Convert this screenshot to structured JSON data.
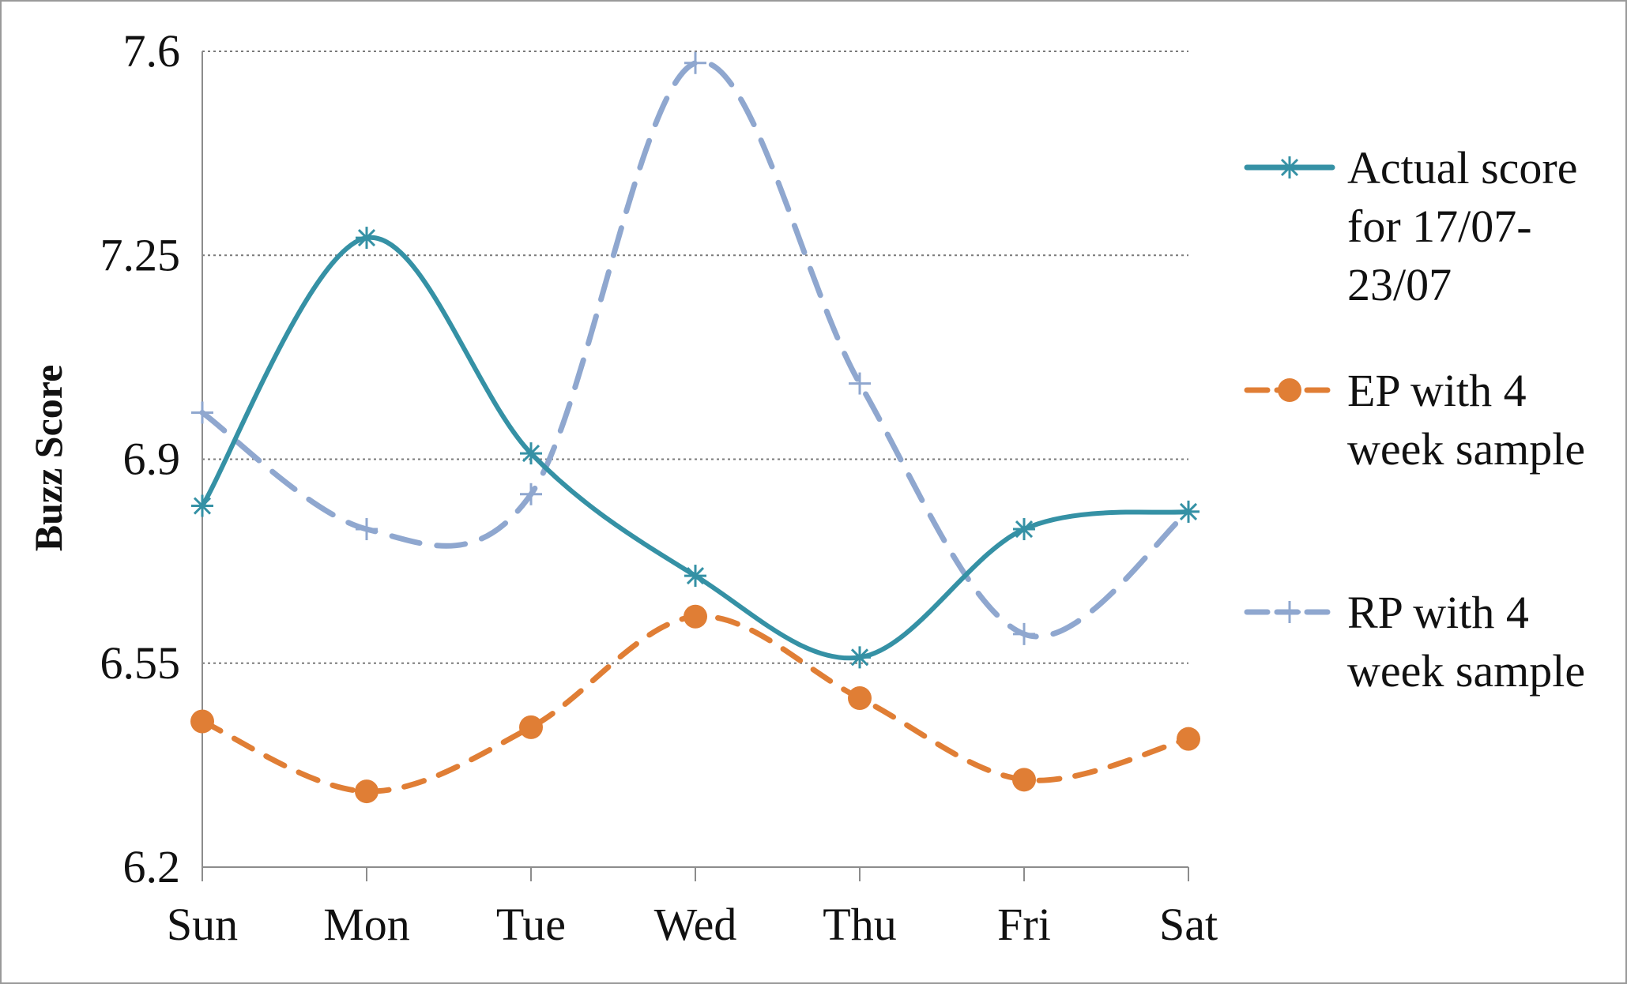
{
  "chart_data": {
    "type": "line",
    "title": "",
    "xlabel": "",
    "ylabel": "Buzz Score",
    "categories": [
      "Sun",
      "Mon",
      "Tue",
      "Wed",
      "Thu",
      "Fri",
      "Sat"
    ],
    "ylim": [
      6.2,
      7.6
    ],
    "yticks": [
      "6.2",
      "6.55",
      "6.9",
      "7.25",
      "7.6"
    ],
    "grid": "horizontal-dotted",
    "legend_position": "right",
    "series": [
      {
        "name": "Actual score for 17/07-23/07",
        "legend_lines": [
          "Actual score",
          "for 17/07-",
          "23/07"
        ],
        "values": [
          6.82,
          7.28,
          6.91,
          6.7,
          6.56,
          6.78,
          6.81
        ],
        "color": "#3591a5",
        "style": "solid",
        "marker": "asterisk"
      },
      {
        "name": "EP with 4 week sample",
        "legend_lines": [
          "EP with 4",
          "week sample"
        ],
        "values": [
          6.45,
          6.33,
          6.44,
          6.63,
          6.49,
          6.35,
          6.42
        ],
        "color": "#e07e35",
        "style": "dashed",
        "marker": "circle"
      },
      {
        "name": "RP with 4 week sample",
        "legend_lines": [
          "RP with 4",
          "week sample"
        ],
        "values": [
          6.98,
          6.78,
          6.84,
          7.58,
          7.03,
          6.6,
          6.81
        ],
        "color": "#8fa7cf",
        "style": "dashed",
        "marker": "plus"
      }
    ]
  }
}
